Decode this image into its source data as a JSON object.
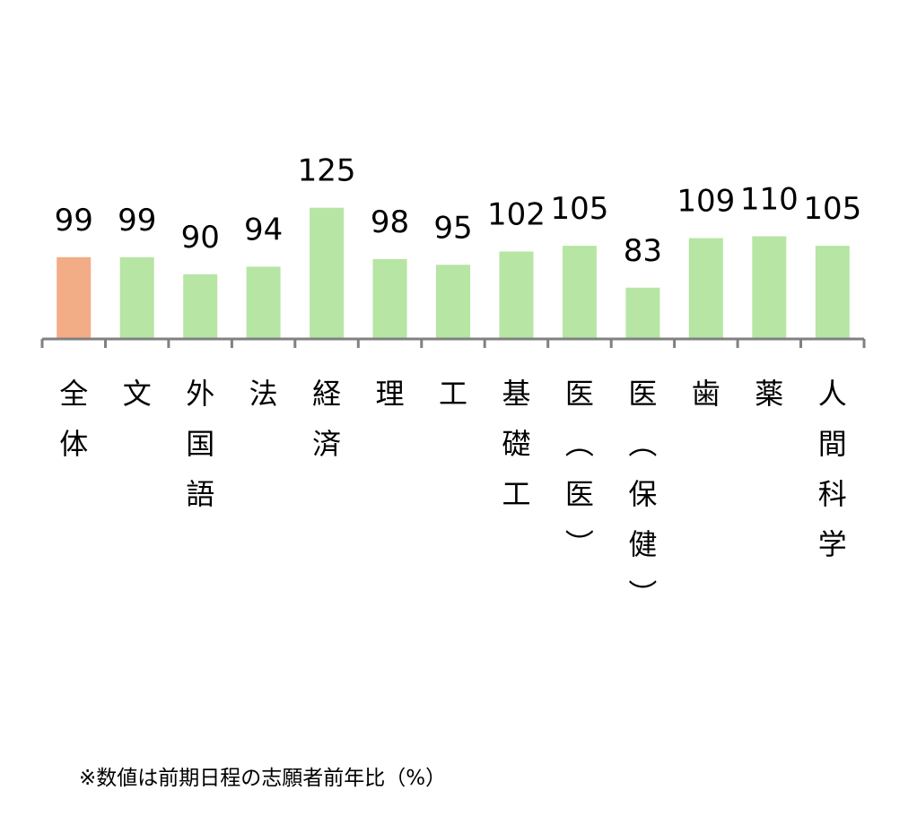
{
  "chart_data": {
    "type": "bar",
    "categories": [
      "全体",
      "文",
      "外国語",
      "法",
      "経済",
      "理",
      "工",
      "基礎工",
      "医（医）",
      "医（保健）",
      "歯",
      "薬",
      "人間科学"
    ],
    "values": [
      99,
      99,
      90,
      94,
      125,
      98,
      95,
      102,
      105,
      83,
      109,
      110,
      105
    ],
    "data_labels": [
      "99",
      "99",
      "90",
      "94",
      "125",
      "98",
      "95",
      "102",
      "105",
      "83",
      "109",
      "110",
      "105"
    ],
    "colors": [
      "#F2AC86",
      "#B6E5A4",
      "#B6E5A4",
      "#B6E5A4",
      "#B6E5A4",
      "#B6E5A4",
      "#B6E5A4",
      "#B6E5A4",
      "#B6E5A4",
      "#B6E5A4",
      "#B6E5A4",
      "#B6E5A4",
      "#B6E5A4"
    ],
    "axis_color": "#808080",
    "grid": false,
    "legend": "none"
  },
  "footnote": "※数値は前期日程の志願者前年比（%）"
}
